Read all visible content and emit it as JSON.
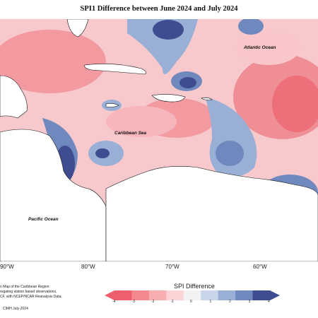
{
  "title": "SPI1 Difference between June 2024 and July 2024",
  "labels": {
    "atlantic": "Atlantic Ocean",
    "caribbean": "Caribbean Sea",
    "pacific": "Pacific Ocean"
  },
  "lon_ticks": [
    "90°W",
    "80°W",
    "70°W",
    "60°W"
  ],
  "legend": {
    "title": "SPI Difference",
    "values": [
      "-4",
      "-3",
      "-2",
      "-1",
      "0",
      "1",
      "2",
      "3",
      "4"
    ],
    "colors": [
      "#ee5f6b",
      "#f5878f",
      "#f8adb1",
      "#fbd3d5",
      "#f2f2f2",
      "#c9d6ea",
      "#9aafd6",
      "#6f88bd",
      "#3f4c90"
    ]
  },
  "credits": [
    "n Map of the Caribbean Region",
    "regating station based observations,",
    "CF, with NCEP/NCAR Reanalysis Data."
  ],
  "date_note": "CIMH July-2024",
  "colors": {
    "land": "#ffffff",
    "strong_dry": "#ef6c75",
    "dry": "#f6a0a6",
    "light_dry": "#fbd3d5",
    "wet": "#9aafd6",
    "strong_wet": "#3f4c90"
  }
}
